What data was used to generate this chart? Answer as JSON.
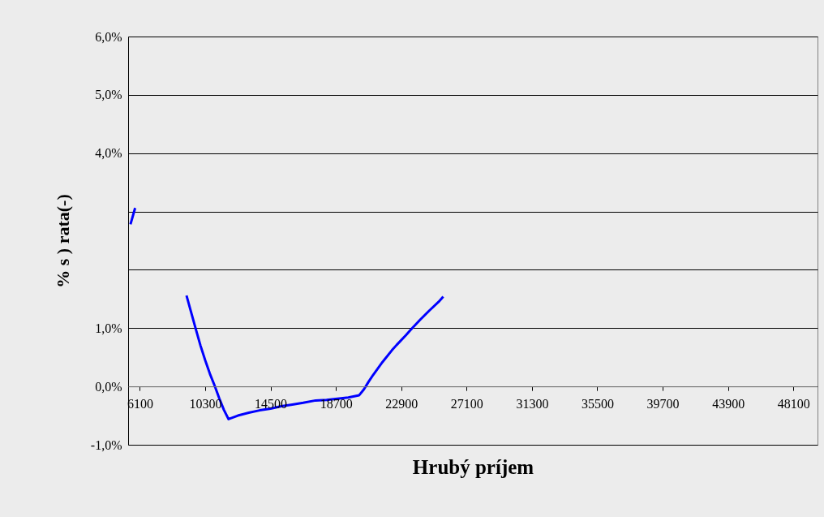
{
  "chart_data": {
    "type": "line",
    "xlabel": "Hrubý príjem",
    "ylabel": "%   s   )   rata(-)",
    "x": [
      5500,
      5800,
      6100,
      9100,
      9400,
      9700,
      10000,
      10300,
      10600,
      10900,
      11200,
      11500,
      11800,
      12400,
      13100,
      13800,
      14500,
      15200,
      15900,
      16600,
      17400,
      18100,
      18800,
      19500,
      20200,
      20500,
      20800,
      21100,
      21700,
      22300,
      22600,
      23200,
      23500,
      24100,
      24700,
      25300,
      25600
    ],
    "series": [
      {
        "color": "#0000ff",
        "values": [
          2.78,
          3.06,
          null,
          1.56,
          1.27,
          0.98,
          0.7,
          0.45,
          0.22,
          0.02,
          -0.2,
          -0.4,
          -0.56,
          -0.5,
          -0.45,
          -0.41,
          -0.38,
          -0.34,
          -0.31,
          -0.28,
          -0.24,
          -0.23,
          -0.21,
          -0.19,
          -0.15,
          -0.05,
          0.08,
          0.2,
          0.42,
          0.62,
          0.71,
          0.88,
          0.97,
          1.14,
          1.3,
          1.45,
          1.54
        ]
      }
    ],
    "xlim": [
      5350,
      49650
    ],
    "xticks": [
      6100,
      10300,
      14500,
      18700,
      22900,
      27100,
      31300,
      35500,
      39700,
      43900,
      48100
    ],
    "ylim": [
      -1,
      6
    ],
    "yticks": [
      {
        "value": -1,
        "label": "-1,0%"
      },
      {
        "value": 0,
        "label": "0,0%"
      },
      {
        "value": 1,
        "label": "1,0%"
      },
      {
        "value": 2,
        "label": null
      },
      {
        "value": 3,
        "label": null
      },
      {
        "value": 4,
        "label": "4,0%"
      },
      {
        "value": 5,
        "label": "5,0%"
      },
      {
        "value": 6,
        "label": "6,0%"
      }
    ],
    "grid": "y",
    "legend": false,
    "marker": "none",
    "line_style": "solid"
  }
}
